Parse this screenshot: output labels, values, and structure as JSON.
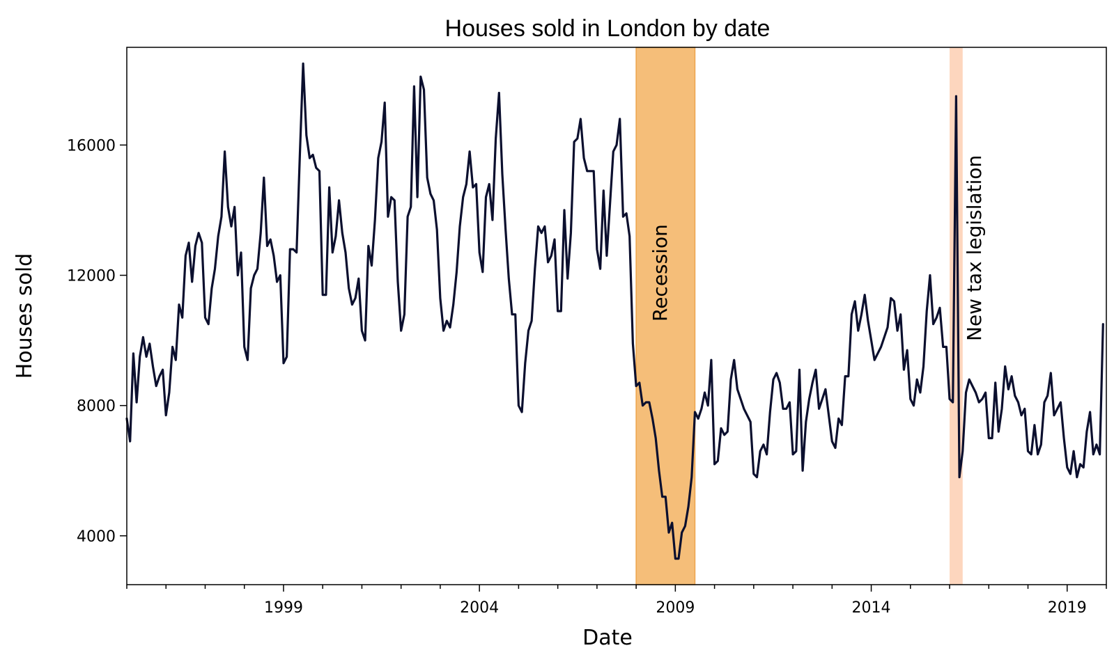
{
  "chart_data": {
    "type": "line",
    "title": "Houses sold in London by date",
    "xlabel": "Date",
    "ylabel": "Houses sold",
    "x_range": [
      "1995-01",
      "2020-01"
    ],
    "ylim": [
      2500,
      19000
    ],
    "x_ticks": [
      {
        "label": "1999",
        "date": "1999-01"
      },
      {
        "label": "2004",
        "date": "2004-01"
      },
      {
        "label": "2009",
        "date": "2009-01"
      },
      {
        "label": "2014",
        "date": "2014-01"
      },
      {
        "label": "2019",
        "date": "2019-01"
      }
    ],
    "y_ticks": [
      4000,
      8000,
      12000,
      16000
    ],
    "grid": false,
    "line_color": "#0b0f2e",
    "annotations": [
      {
        "label": "Recession",
        "start": "2008-01",
        "end": "2009-07",
        "color": "#f5be79"
      },
      {
        "label": "New tax legislation",
        "start": "2016-01",
        "end": "2016-05",
        "color": "#fdd6be"
      }
    ],
    "series": [
      {
        "start": "1995-01",
        "step": "month",
        "values": [
          7600,
          6900,
          9600,
          8100,
          9500,
          10100,
          9500,
          9900,
          9200,
          8600,
          8900,
          9100,
          7700,
          8400,
          9800,
          9400,
          11100,
          10700,
          12600,
          13000,
          11800,
          12900,
          13300,
          13000,
          10700,
          10500,
          11600,
          12200,
          13200,
          13800,
          15800,
          14100,
          13500,
          14100,
          12000,
          12700,
          9800,
          9400,
          11600,
          12000,
          12200,
          13300,
          15000,
          12900,
          13100,
          12600,
          11800,
          12000,
          9300,
          9500,
          12800,
          12800,
          12700,
          15700,
          18500,
          16300,
          15600,
          15700,
          15300,
          15200,
          11400,
          11400,
          14700,
          12700,
          13200,
          14300,
          13300,
          12700,
          11600,
          11100,
          11300,
          11900,
          10300,
          10000,
          12900,
          12300,
          13700,
          15600,
          16100,
          17300,
          13800,
          14400,
          14300,
          11800,
          10300,
          10800,
          13800,
          14100,
          17800,
          14400,
          18100,
          17700,
          15000,
          14500,
          14300,
          13400,
          11300,
          10300,
          10600,
          10400,
          11100,
          12100,
          13500,
          14400,
          14800,
          15800,
          14700,
          14800,
          12700,
          12100,
          14400,
          14800,
          13700,
          16200,
          17600,
          15100,
          13400,
          11900,
          10800,
          10800,
          8000,
          7800,
          9300,
          10300,
          10600,
          12200,
          13500,
          13300,
          13500,
          12400,
          12600,
          13100,
          10900,
          10900,
          14000,
          11900,
          13300,
          16100,
          16200,
          16800,
          15600,
          15200,
          15200,
          15200,
          12800,
          12200,
          14600,
          12600,
          14200,
          15800,
          16000,
          16800,
          13800,
          13900,
          13200,
          9900,
          8600,
          8700,
          8000,
          8100,
          8100,
          7600,
          7000,
          6000,
          5200,
          5200,
          4100,
          4400,
          3300,
          3300,
          4100,
          4300,
          4900,
          5800,
          7800,
          7600,
          7900,
          8400,
          8000,
          9400,
          6200,
          6300,
          7300,
          7100,
          7200,
          8800,
          9400,
          8500,
          8200,
          7900,
          7700,
          7500,
          5900,
          5800,
          6600,
          6800,
          6500,
          7800,
          8800,
          9000,
          8700,
          7900,
          7900,
          8100,
          6500,
          6600,
          9100,
          6000,
          7500,
          8200,
          8700,
          9100,
          7900,
          8200,
          8500,
          7700,
          6900,
          6700,
          7600,
          7400,
          8900,
          8900,
          10800,
          11200,
          10300,
          10800,
          11400,
          10600,
          10000,
          9400,
          9600,
          9800,
          10100,
          10400,
          11300,
          11200,
          10300,
          10800,
          9100,
          9700,
          8200,
          8000,
          8800,
          8400,
          9200,
          10900,
          12000,
          10500,
          10700,
          11000,
          9800,
          9800,
          8200,
          8100,
          17500,
          5800,
          6600,
          8400,
          8800,
          8600,
          8400,
          8100,
          8200,
          8400,
          7000,
          7000,
          8700,
          7200,
          7900,
          9200,
          8500,
          8900,
          8300,
          8100,
          7700,
          7900,
          6600,
          6500,
          7400,
          6500,
          6800,
          8100,
          8300,
          9000,
          7700,
          7900,
          8100,
          7000,
          6100,
          5900,
          6600,
          5800,
          6200,
          6100,
          7200,
          7800,
          6500,
          6800,
          6500,
          10500
        ]
      }
    ]
  }
}
